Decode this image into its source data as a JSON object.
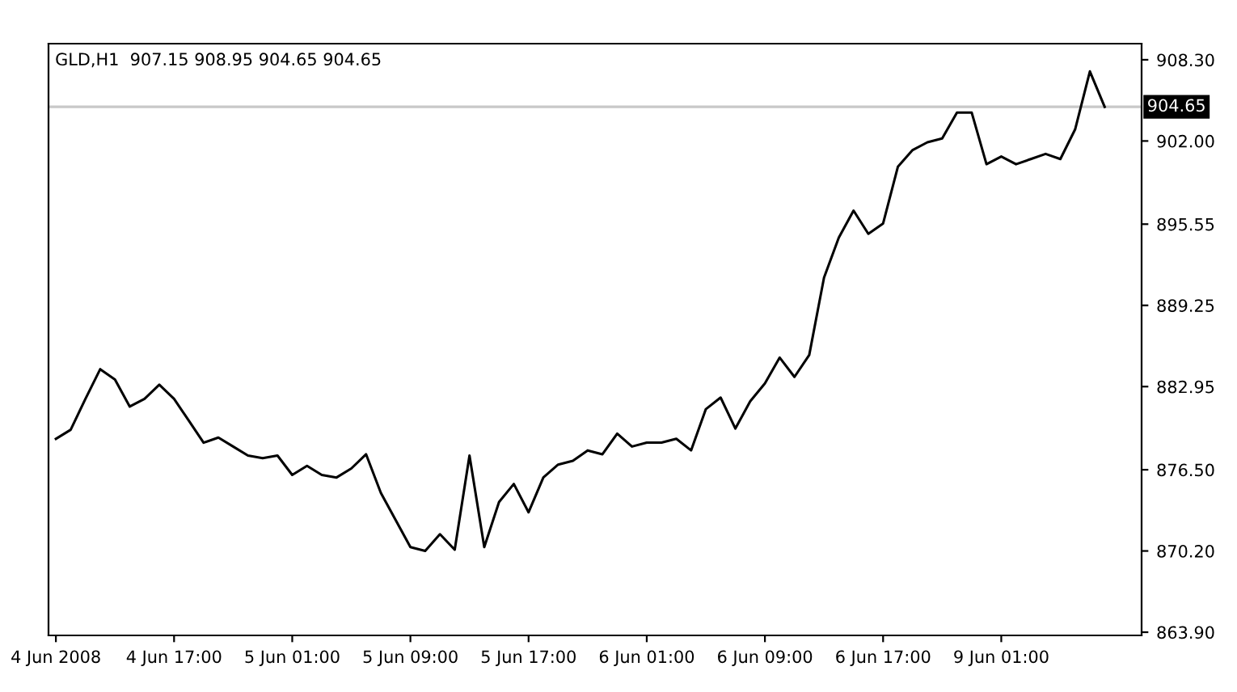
{
  "chart_data": {
    "type": "line",
    "title": "GLD,H1  907.15 908.95 904.65 904.65",
    "categories": [
      "4 Jun 2008",
      null,
      null,
      null,
      null,
      null,
      null,
      null,
      "4 Jun 17:00",
      null,
      null,
      null,
      null,
      null,
      null,
      null,
      "5 Jun 01:00",
      null,
      null,
      null,
      null,
      null,
      null,
      null,
      "5 Jun 09:00",
      null,
      null,
      null,
      null,
      null,
      null,
      null,
      "5 Jun 17:00",
      null,
      null,
      null,
      null,
      null,
      null,
      null,
      "6 Jun 01:00",
      null,
      null,
      null,
      null,
      null,
      null,
      null,
      "6 Jun 09:00",
      null,
      null,
      null,
      null,
      null,
      null,
      null,
      "6 Jun 17:00",
      null,
      null,
      null,
      null,
      null,
      null,
      null,
      "9 Jun 01:00",
      null,
      null,
      null,
      null,
      null,
      null,
      null,
      null,
      null
    ],
    "series": [
      {
        "color": "#000000",
        "values": [
          878.9,
          879.6,
          882.0,
          884.3,
          883.5,
          881.4,
          882.0,
          883.1,
          882.0,
          880.3,
          878.6,
          879.0,
          878.3,
          877.6,
          877.4,
          877.6,
          876.1,
          876.8,
          876.1,
          875.9,
          876.6,
          877.7,
          874.7,
          872.6,
          870.5,
          870.2,
          871.5,
          870.3,
          877.6,
          870.5,
          874.0,
          875.4,
          873.2,
          875.9,
          876.9,
          877.2,
          878.0,
          877.7,
          879.3,
          878.3,
          878.6,
          878.6,
          878.9,
          878.0,
          881.2,
          882.1,
          879.7,
          881.8,
          883.2,
          885.2,
          883.7,
          885.4,
          891.4,
          894.5,
          896.6,
          894.8,
          895.6,
          900.0,
          901.3,
          901.9,
          902.2,
          904.2,
          904.2,
          900.2,
          900.8,
          900.2,
          900.6,
          901.0,
          900.6,
          902.9,
          907.4,
          904.65,
          null,
          null
        ]
      }
    ],
    "ylim": [
      863.65,
      909.55
    ],
    "yticks": [
      {
        "value": 863.9,
        "label": "863.90"
      },
      {
        "value": 870.2,
        "label": "870.20"
      },
      {
        "value": 876.5,
        "label": "876.50"
      },
      {
        "value": 882.95,
        "label": "882.95"
      },
      {
        "value": 889.25,
        "label": "889.25"
      },
      {
        "value": 895.55,
        "label": "895.55"
      },
      {
        "value": 902.0,
        "label": "902.00"
      },
      {
        "value": 908.3,
        "label": "908.30"
      }
    ],
    "ref_lines": [
      {
        "axis": "y",
        "value": 904.65,
        "label": "904.65",
        "color": "#c8c8c8"
      }
    ],
    "grid": false,
    "legend": false,
    "marker": "none",
    "line_style": "solid"
  }
}
